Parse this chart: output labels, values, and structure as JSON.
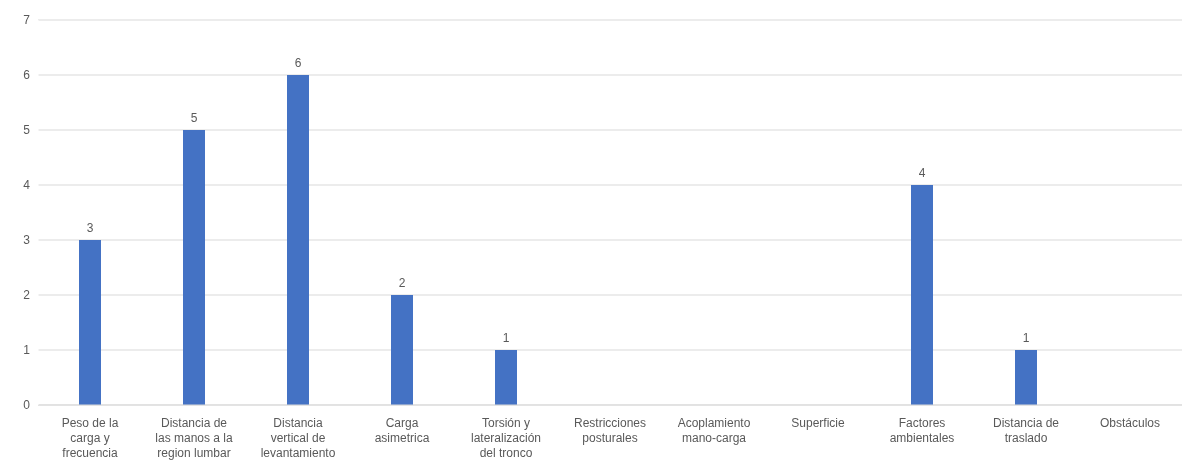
{
  "chart_data": {
    "type": "bar",
    "categories": [
      "Peso de la carga y frecuencia",
      "Distancia de las manos a la region lumbar",
      "Distancia vertical de levantamiento",
      "Carga asimetrica",
      "Torsión y lateralización del tronco",
      "Restricciones posturales",
      "Acoplamiento mano-carga",
      "Superficie",
      "Factores ambientales",
      "Distancia de traslado",
      "Obstáculos"
    ],
    "values": [
      3,
      5,
      6,
      2,
      1,
      0,
      0,
      0,
      4,
      1,
      0
    ],
    "value_labels": [
      "3",
      "5",
      "6",
      "2",
      "1",
      null,
      null,
      null,
      "4",
      "1",
      null
    ],
    "color": "#4472c4",
    "ylim": [
      0,
      7
    ],
    "yticks": [
      0,
      1,
      2,
      3,
      4,
      5,
      6,
      7
    ],
    "grid": "y"
  }
}
